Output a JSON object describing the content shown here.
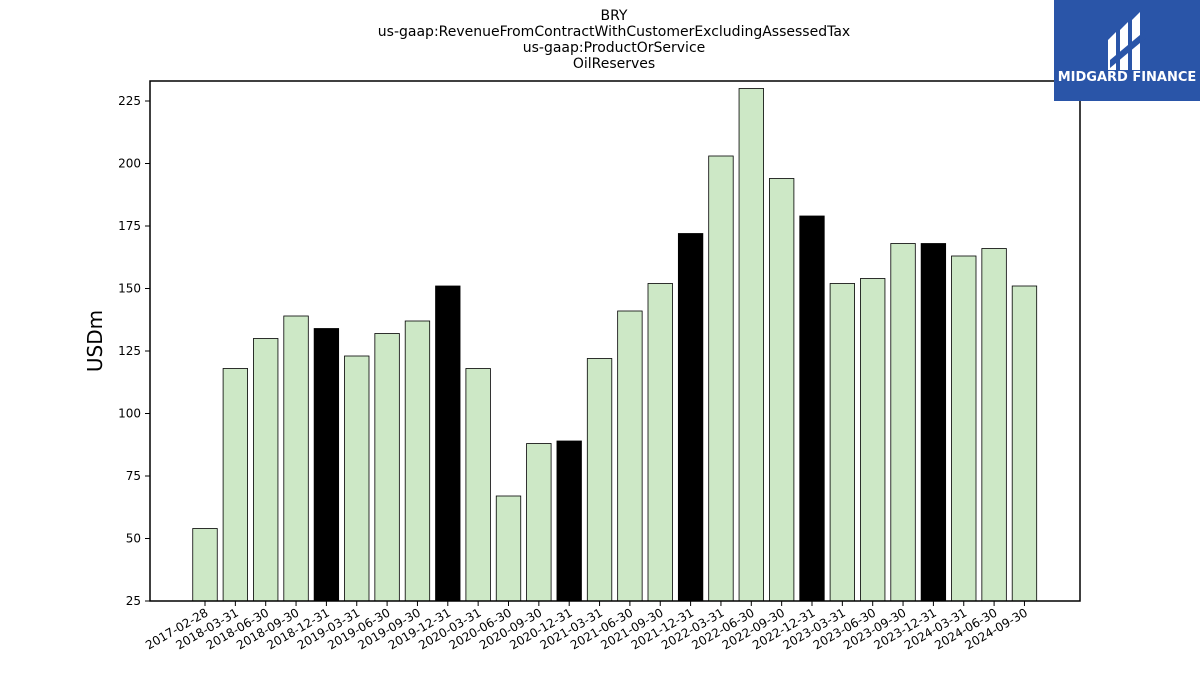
{
  "title_lines": [
    "BRY",
    "us-gaap:RevenueFromContractWithCustomerExcludingAssessedTax",
    "us-gaap:ProductOrService",
    "OilReserves"
  ],
  "logo": {
    "text": "MIDGARD FINANCE",
    "bg_color": "#2a55a8"
  },
  "chart_data": {
    "type": "bar",
    "title": "BRY\nus-gaap:RevenueFromContractWithCustomerExcludingAssessedTax\nus-gaap:ProductOrService\nOilReserves",
    "xlabel": "",
    "ylabel": "USDm",
    "ylim": [
      25,
      233
    ],
    "yticks": [
      25,
      50,
      75,
      100,
      125,
      150,
      175,
      200,
      225
    ],
    "grid": false,
    "colors": {
      "quarter": "#cde8c6",
      "year_end": "#000000",
      "edge": "#000000"
    },
    "categories": [
      "2017-02-28",
      "2018-03-31",
      "2018-06-30",
      "2018-09-30",
      "2018-12-31",
      "2019-03-31",
      "2019-06-30",
      "2019-09-30",
      "2019-12-31",
      "2020-03-31",
      "2020-06-30",
      "2020-09-30",
      "2020-12-31",
      "2021-03-31",
      "2021-06-30",
      "2021-09-30",
      "2021-12-31",
      "2022-03-31",
      "2022-06-30",
      "2022-09-30",
      "2022-12-31",
      "2023-03-31",
      "2023-06-30",
      "2023-09-30",
      "2023-12-31",
      "2024-03-31",
      "2024-06-30",
      "2024-09-30"
    ],
    "values": [
      54,
      118,
      130,
      139,
      134,
      123,
      132,
      137,
      151,
      118,
      67,
      88,
      89,
      122,
      141,
      152,
      172,
      203,
      230,
      194,
      179,
      152,
      154,
      168,
      168,
      163,
      166,
      151
    ],
    "year_end": [
      false,
      false,
      false,
      false,
      true,
      false,
      false,
      false,
      true,
      false,
      false,
      false,
      true,
      false,
      false,
      false,
      true,
      false,
      false,
      false,
      true,
      false,
      false,
      false,
      true,
      false,
      false,
      false
    ]
  }
}
